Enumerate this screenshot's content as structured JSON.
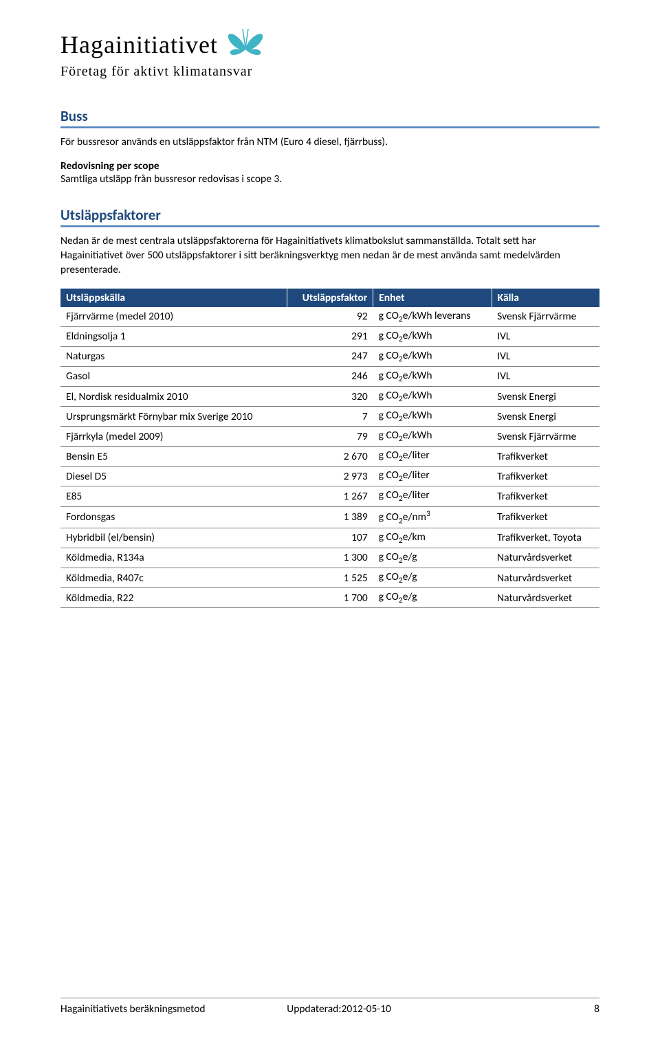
{
  "logo": {
    "name": "Hagainitiativet",
    "tagline": "Företag för aktivt klimatansvar",
    "butterfly_color": "#3fb4c5"
  },
  "sections": {
    "buss": {
      "title": "Buss",
      "text1": "För bussresor används en utsläppsfaktor från NTM (Euro 4 diesel, fjärrbuss).",
      "sub": "Redovisning per scope",
      "text2": "Samtliga utsläpp från bussresor redovisas i scope 3."
    },
    "utslappsfaktorer": {
      "title": "Utsläppsfaktorer",
      "text": "Nedan är de mest centrala utsläppsfaktorerna för Hagainitiativets klimatbokslut sammanställda. Totalt sett har Hagainitiativet över 500 utsläppsfaktorer i sitt beräkningsverktyg men nedan är de mest använda samt medelvärden presenterade."
    }
  },
  "table": {
    "headers": [
      "Utsläppskälla",
      "Utsläppsfaktor",
      "Enhet",
      "Källa"
    ],
    "rows": [
      {
        "a": "Fjärrvärme (medel 2010)",
        "b": "92",
        "c": "g CO₂e/kWh leverans",
        "d": "Svensk Fjärrvärme"
      },
      {
        "a": "Eldningsolja 1",
        "b": "291",
        "c": "g CO₂e/kWh",
        "d": "IVL"
      },
      {
        "a": "Naturgas",
        "b": "247",
        "c": "g CO₂e/kWh",
        "d": "IVL"
      },
      {
        "a": "Gasol",
        "b": "246",
        "c": "g CO₂e/kWh",
        "d": "IVL"
      },
      {
        "a": "El, Nordisk residualmix 2010",
        "b": "320",
        "c": "g CO₂e/kWh",
        "d": "Svensk Energi"
      },
      {
        "a": "Ursprungsmärkt Förnybar mix Sverige 2010",
        "b": "7",
        "c": "g CO₂e/kWh",
        "d": "Svensk Energi"
      },
      {
        "a": "Fjärrkyla (medel 2009)",
        "b": "79",
        "c": "g CO₂e/kWh",
        "d": "Svensk Fjärrvärme"
      },
      {
        "a": "Bensin E5",
        "b": "2 670",
        "c": "g CO₂e/liter",
        "d": "Trafikverket"
      },
      {
        "a": "Diesel D5",
        "b": "2 973",
        "c": "g CO₂e/liter",
        "d": "Trafikverket"
      },
      {
        "a": "E85",
        "b": "1 267",
        "c": "g CO₂e/liter",
        "d": "Trafikverket"
      },
      {
        "a": "Fordonsgas",
        "b": "1 389",
        "c": "g CO₂e/nm³",
        "d": "Trafikverket"
      },
      {
        "a": "Hybridbil (el/bensin)",
        "b": "107",
        "c": "g CO₂e/km",
        "d": "Trafikverket, Toyota"
      },
      {
        "a": "Köldmedia, R134a",
        "b": "1 300",
        "c": "g CO₂e/g",
        "d": "Naturvårdsverket"
      },
      {
        "a": "Köldmedia, R407c",
        "b": "1 525",
        "c": "g CO₂e/g",
        "d": "Naturvårdsverket"
      },
      {
        "a": "Köldmedia, R22",
        "b": "1 700",
        "c": "g CO₂e/g",
        "d": "Naturvårdsverket"
      }
    ]
  },
  "footer": {
    "left": "Hagainitiativets beräkningsmetod",
    "mid": "Uppdaterad:2012-05-10",
    "page": "8"
  },
  "colors": {
    "heading_blue": "#1f497d",
    "rule_top": "#4f81bd",
    "rule_bottom": "#a7bfde",
    "table_header_bg": "#1f497d",
    "table_header_fg": "#ffffff",
    "cell_border": "#7f7f7f"
  }
}
